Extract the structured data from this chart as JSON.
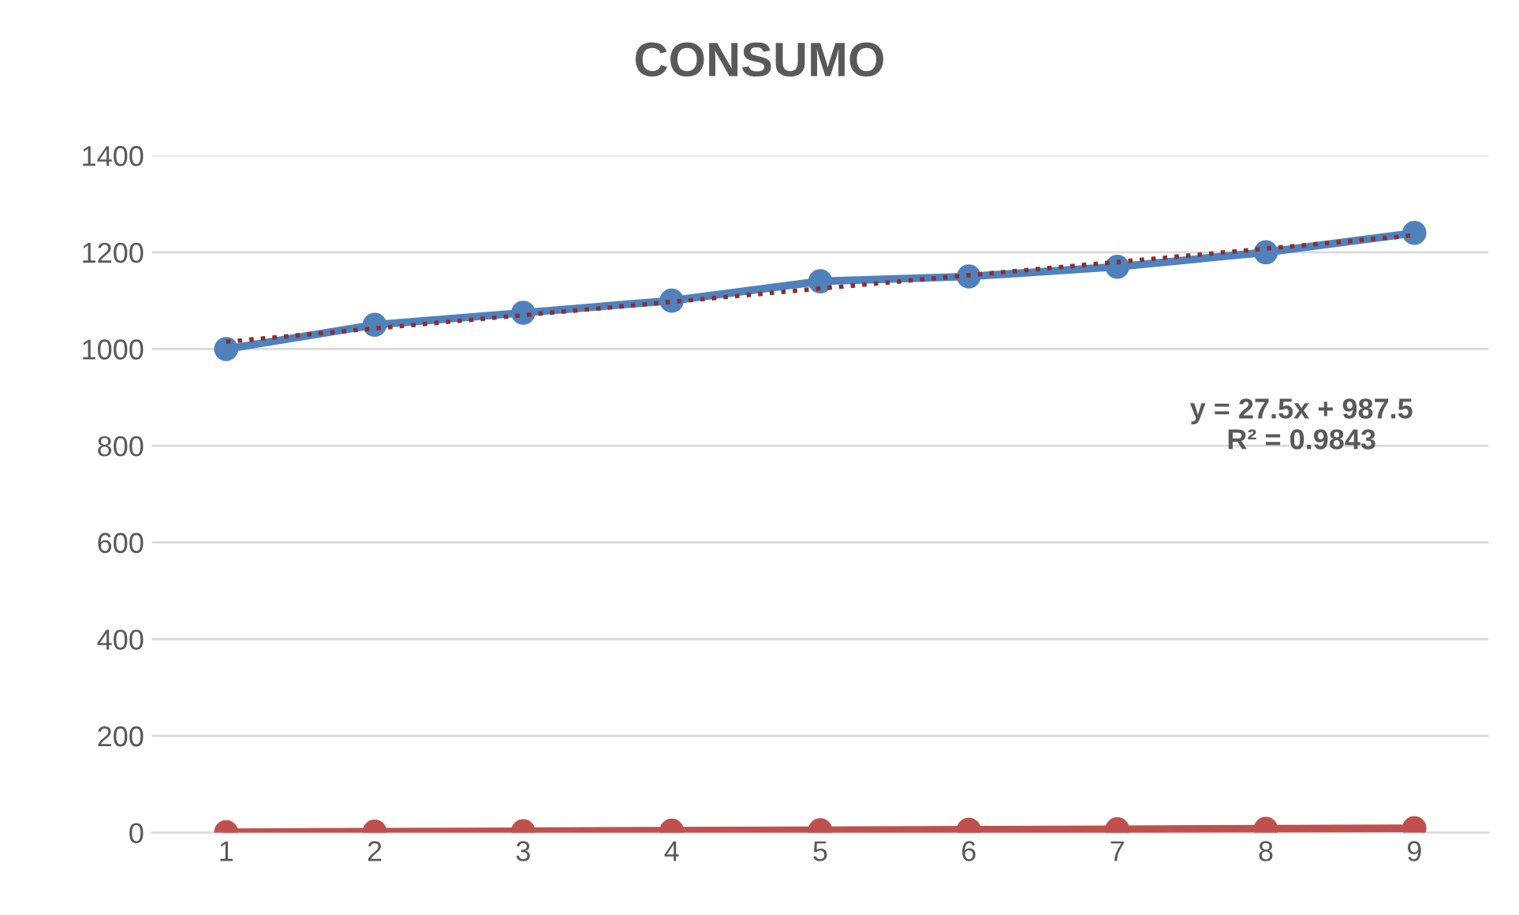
{
  "chart_data": {
    "type": "line",
    "title": "CONSUMO",
    "x": [
      1,
      2,
      3,
      4,
      5,
      6,
      7,
      8,
      9
    ],
    "series": [
      {
        "color": "#4f81bd",
        "values": [
          1000,
          1050,
          1075,
          1100,
          1140,
          1150,
          1170,
          1200,
          1240
        ],
        "marker": "circle",
        "line_style": "solid"
      },
      {
        "color": "#c0504d",
        "values": [
          1,
          2,
          3,
          4,
          5,
          6,
          7,
          8,
          9
        ],
        "marker": "circle",
        "line_style": "solid"
      },
      {
        "type": "line",
        "x": [
          1,
          9
        ],
        "color": "#8b2e2e",
        "values": [
          1015,
          1235
        ],
        "marker": "none",
        "line_style": "dotted"
      }
    ],
    "annotations": [
      "y = 27.5x + 987.5\nR² = 0.9843"
    ],
    "xlim": [
      0.5,
      9.5
    ],
    "xticks": [
      1,
      2,
      3,
      4,
      5,
      6,
      7,
      8,
      9
    ],
    "ylim": [
      0,
      1400
    ],
    "yticks": [
      0,
      200,
      400,
      600,
      800,
      1000,
      1200,
      1400
    ],
    "grid": "y",
    "legend": false
  }
}
